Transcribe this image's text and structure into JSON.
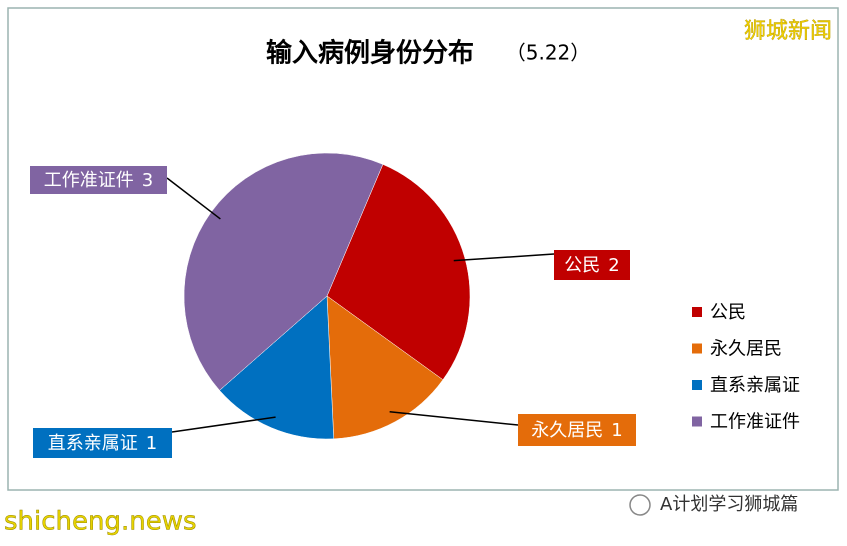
{
  "chart_data": {
    "type": "pie",
    "title": "输入病例身份分布",
    "subtitle": "（5.22）",
    "categories": [
      "公民",
      "永久居民",
      "直系亲属证",
      "工作准证件"
    ],
    "values": [
      2,
      1,
      1,
      3
    ],
    "colors": [
      "#c00000",
      "#e46c0a",
      "#0070c0",
      "#8064a2"
    ],
    "legend": "right"
  },
  "watermark": "狮城新闻",
  "footer": {
    "site": "shicheng.news",
    "account": "A计划学习狮城篇"
  }
}
